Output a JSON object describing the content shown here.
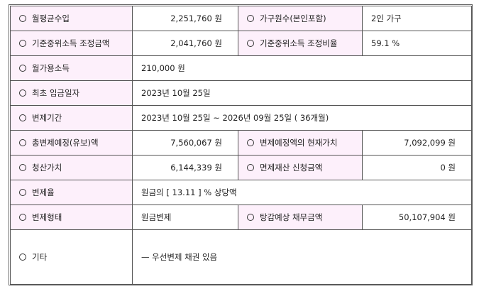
{
  "rows": [
    {
      "label": "월평균수입",
      "value": "2,251,760 원",
      "label2": "가구원수(본인포함)",
      "value2": "2인 가구"
    },
    {
      "label": "기준중위소득 조정금액",
      "value": "2,041,760 원",
      "label2": "기준중위소득 조정비율",
      "value2": "59.1 %"
    },
    {
      "label": "월가용소득",
      "value": "210,000 원"
    },
    {
      "label": "최초 입금일자",
      "value": "2023년 10월 25일"
    },
    {
      "label": "변제기간",
      "value": "2023년 10월 25일 ~ 2026년 09월 25일 ( 36개월)"
    },
    {
      "label": "총변제예정(유보)액",
      "value": "7,560,067 원",
      "label2": "변제예정액의 현재가치",
      "value2": "7,092,099 원"
    },
    {
      "label": "청산가치",
      "value": "6,144,339 원",
      "label2": "면제재산 신청금액",
      "value2": "0 원"
    },
    {
      "label": "변제율",
      "value": "원금의 [ 13.11 ] % 상당액"
    },
    {
      "label": "변제형태",
      "value": "원금변제",
      "label2": "탕감예상 채무금액",
      "value2": "50,107,904 원"
    },
    {
      "label": "기타",
      "value": "— 우선변제 채권 있음"
    }
  ],
  "colors": {
    "label_bg": "#fdf0fb",
    "border": "#555555"
  }
}
